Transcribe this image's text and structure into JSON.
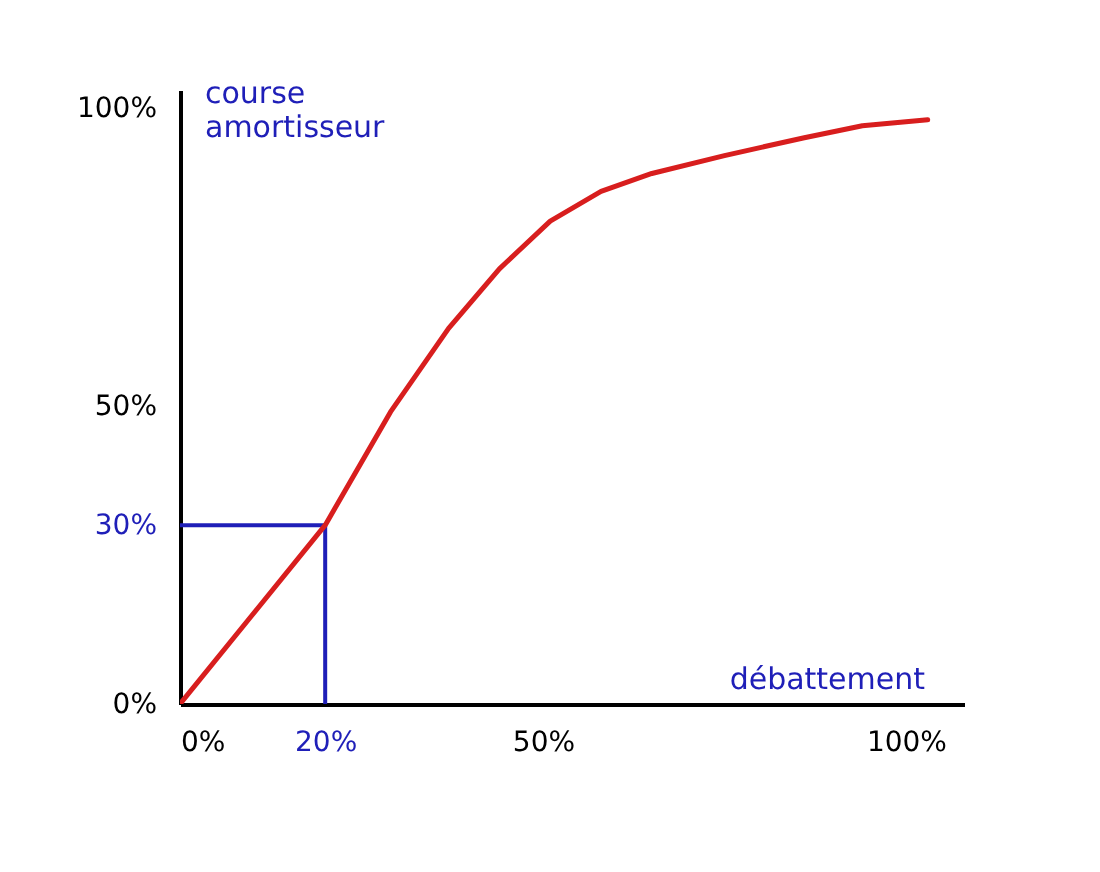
{
  "chart_data": {
    "type": "line",
    "xlabel": "débattement",
    "ylabel": "course amortisseur",
    "x": [
      0,
      20,
      29,
      37,
      44,
      51,
      58,
      65,
      75,
      86,
      94,
      103
    ],
    "series": [
      {
        "color": "#d81e1e",
        "values": [
          0,
          30,
          49,
          63,
          73,
          81,
          86,
          89,
          92,
          95,
          97,
          98
        ]
      }
    ],
    "xlim": [
      0,
      108
    ],
    "ylim": [
      0,
      103
    ],
    "xticks": [
      {
        "value": 0,
        "label": "0%"
      },
      {
        "value": 20,
        "label": "20%"
      },
      {
        "value": 50,
        "label": "50%"
      },
      {
        "value": 100,
        "label": "100%"
      }
    ],
    "yticks": [
      {
        "value": 0,
        "label": "0%"
      },
      {
        "value": 30,
        "label": "30%"
      },
      {
        "value": 50,
        "label": "50%"
      },
      {
        "value": 100,
        "label": "100%"
      }
    ],
    "ref_lines": [
      {
        "axis": "x",
        "value": 20,
        "color": "#1f1fb8"
      },
      {
        "axis": "y",
        "value": 30,
        "color": "#1f1fb8"
      }
    ],
    "grid": false,
    "marker": "none",
    "line_style": "solid"
  }
}
